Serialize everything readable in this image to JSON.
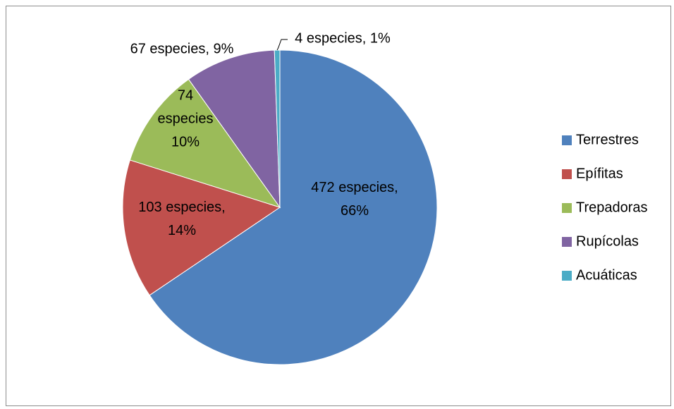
{
  "chart_data": {
    "type": "pie",
    "title": "",
    "slices": [
      {
        "name": "Terrestres",
        "value": 472,
        "label_lines": [
          "472 especies,",
          "66%"
        ],
        "color": "#4f81bd"
      },
      {
        "name": "Epífitas",
        "value": 103,
        "label_lines": [
          "103 especies,",
          "14%"
        ],
        "color": "#c0504d"
      },
      {
        "name": "Trepadoras",
        "value": 74,
        "label_lines": [
          "74",
          "especies",
          "10%"
        ],
        "color": "#9bbb59"
      },
      {
        "name": "Rupícolas",
        "value": 67,
        "label_lines": [
          "67 especies, 9%"
        ],
        "color": "#8064a2"
      },
      {
        "name": "Acuáticas",
        "value": 4,
        "label_lines": [
          "4 especies, 1%"
        ],
        "color": "#4bacc6"
      }
    ],
    "legend_position": "right"
  }
}
